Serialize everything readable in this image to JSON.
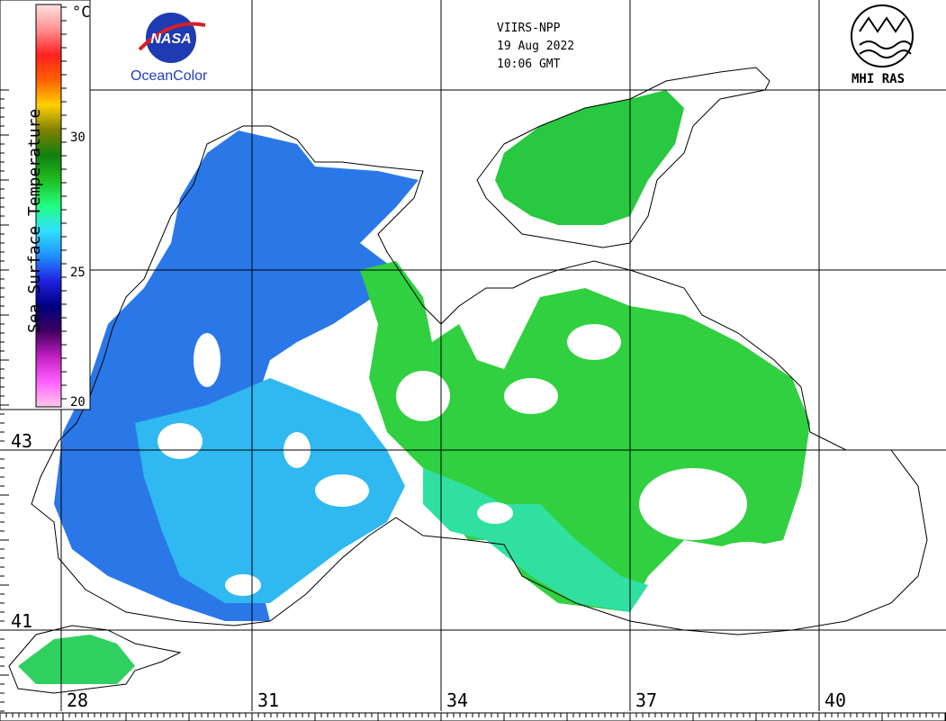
{
  "satellite": "VIIRS-NPP",
  "date": "19 Aug 2022",
  "time": "10:06 GMT",
  "nasa_logo_text": "NASA",
  "ocean_color_label": "OceanColor",
  "institute_label": "MHI RAS",
  "colorbar": {
    "title": "Sea Surface Temperature",
    "unit": "°C",
    "ticks": [
      "30",
      "25",
      "20"
    ],
    "colors": [
      "#ffc8e6",
      "#ff60ff",
      "#c020c0",
      "#400060",
      "#000080",
      "#2020e0",
      "#2090ff",
      "#30e0ff",
      "#20ff80",
      "#20c020",
      "#108010",
      "#808000",
      "#ffd000",
      "#ff6000",
      "#ff2020",
      "#ff9090",
      "#ffe0e0"
    ]
  },
  "latitude_labels": [
    "43",
    "41"
  ],
  "longitude_labels": [
    "28",
    "31",
    "34",
    "37",
    "40"
  ],
  "colors": {
    "water_blue": "#2a78e8",
    "water_cyan": "#30b8f0",
    "water_green": "#30d040",
    "land": "#ffffff",
    "coast": "#000000",
    "cloud": "#ffffff"
  }
}
